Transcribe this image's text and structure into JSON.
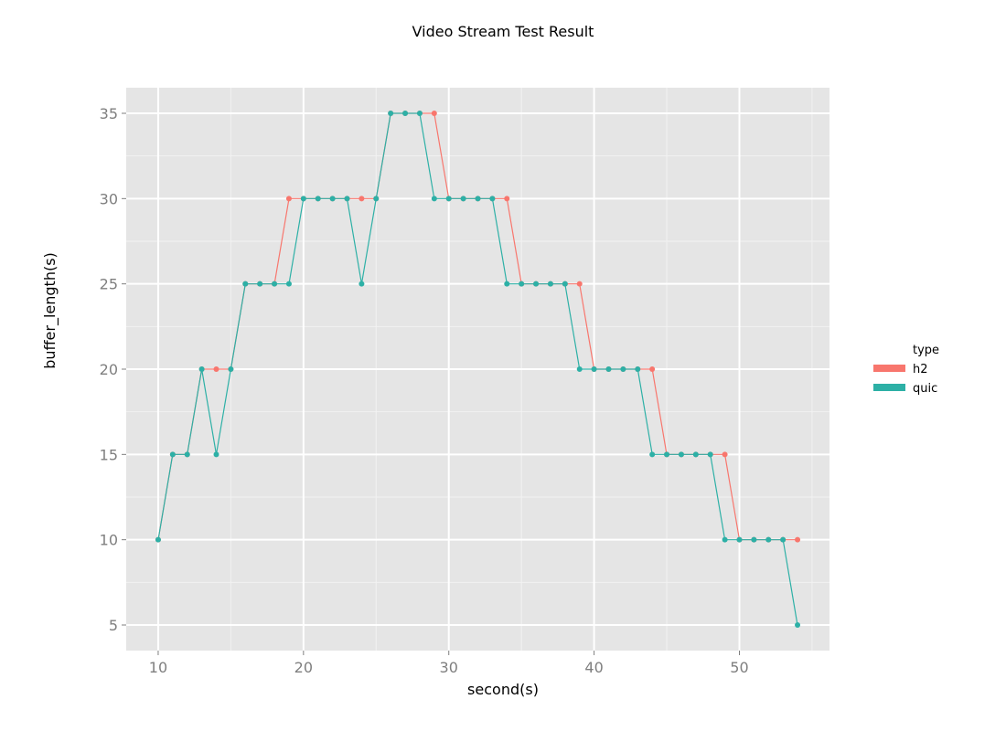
{
  "chart_data": {
    "type": "line",
    "title": "Video Stream Test Result",
    "xlabel": "second(s)",
    "ylabel": "buffer_length(s)",
    "xlim": [
      7.8,
      56.2
    ],
    "ylim": [
      3.5,
      36.5
    ],
    "x_ticks": [
      10,
      20,
      30,
      40,
      50
    ],
    "y_ticks": [
      5,
      10,
      15,
      20,
      25,
      30,
      35
    ],
    "grid": true,
    "legend": {
      "title": "type",
      "position": "right"
    },
    "series": [
      {
        "name": "h2",
        "color": "#F8766D",
        "x": [
          10,
          11,
          12,
          13,
          14,
          15,
          16,
          17,
          18,
          19,
          20,
          21,
          22,
          23,
          24,
          25,
          26,
          27,
          28,
          29,
          30,
          31,
          32,
          33,
          34,
          35,
          36,
          37,
          38,
          39,
          40,
          41,
          42,
          43,
          44,
          45,
          46,
          47,
          48,
          49,
          50,
          51,
          52,
          53,
          54
        ],
        "y": [
          10,
          15,
          15,
          20,
          20,
          20,
          25,
          25,
          25,
          30,
          30,
          30,
          30,
          30,
          30,
          30,
          35,
          35,
          35,
          35,
          30,
          30,
          30,
          30,
          30,
          25,
          25,
          25,
          25,
          25,
          20,
          20,
          20,
          20,
          20,
          15,
          15,
          15,
          15,
          15,
          10,
          10,
          10,
          10,
          10
        ]
      },
      {
        "name": "quic",
        "color": "#2DB0A6",
        "x": [
          10,
          11,
          12,
          13,
          14,
          15,
          16,
          17,
          18,
          19,
          20,
          21,
          22,
          23,
          24,
          25,
          26,
          27,
          28,
          29,
          30,
          31,
          32,
          33,
          34,
          35,
          36,
          37,
          38,
          39,
          40,
          41,
          42,
          43,
          44,
          45,
          46,
          47,
          48,
          49,
          50,
          51,
          52,
          53,
          54
        ],
        "y": [
          10,
          15,
          15,
          20,
          15,
          20,
          25,
          25,
          25,
          25,
          30,
          30,
          30,
          30,
          25,
          30,
          35,
          35,
          35,
          30,
          30,
          30,
          30,
          30,
          25,
          25,
          25,
          25,
          25,
          20,
          20,
          20,
          20,
          20,
          15,
          15,
          15,
          15,
          15,
          10,
          10,
          10,
          10,
          10,
          5
        ]
      }
    ]
  }
}
